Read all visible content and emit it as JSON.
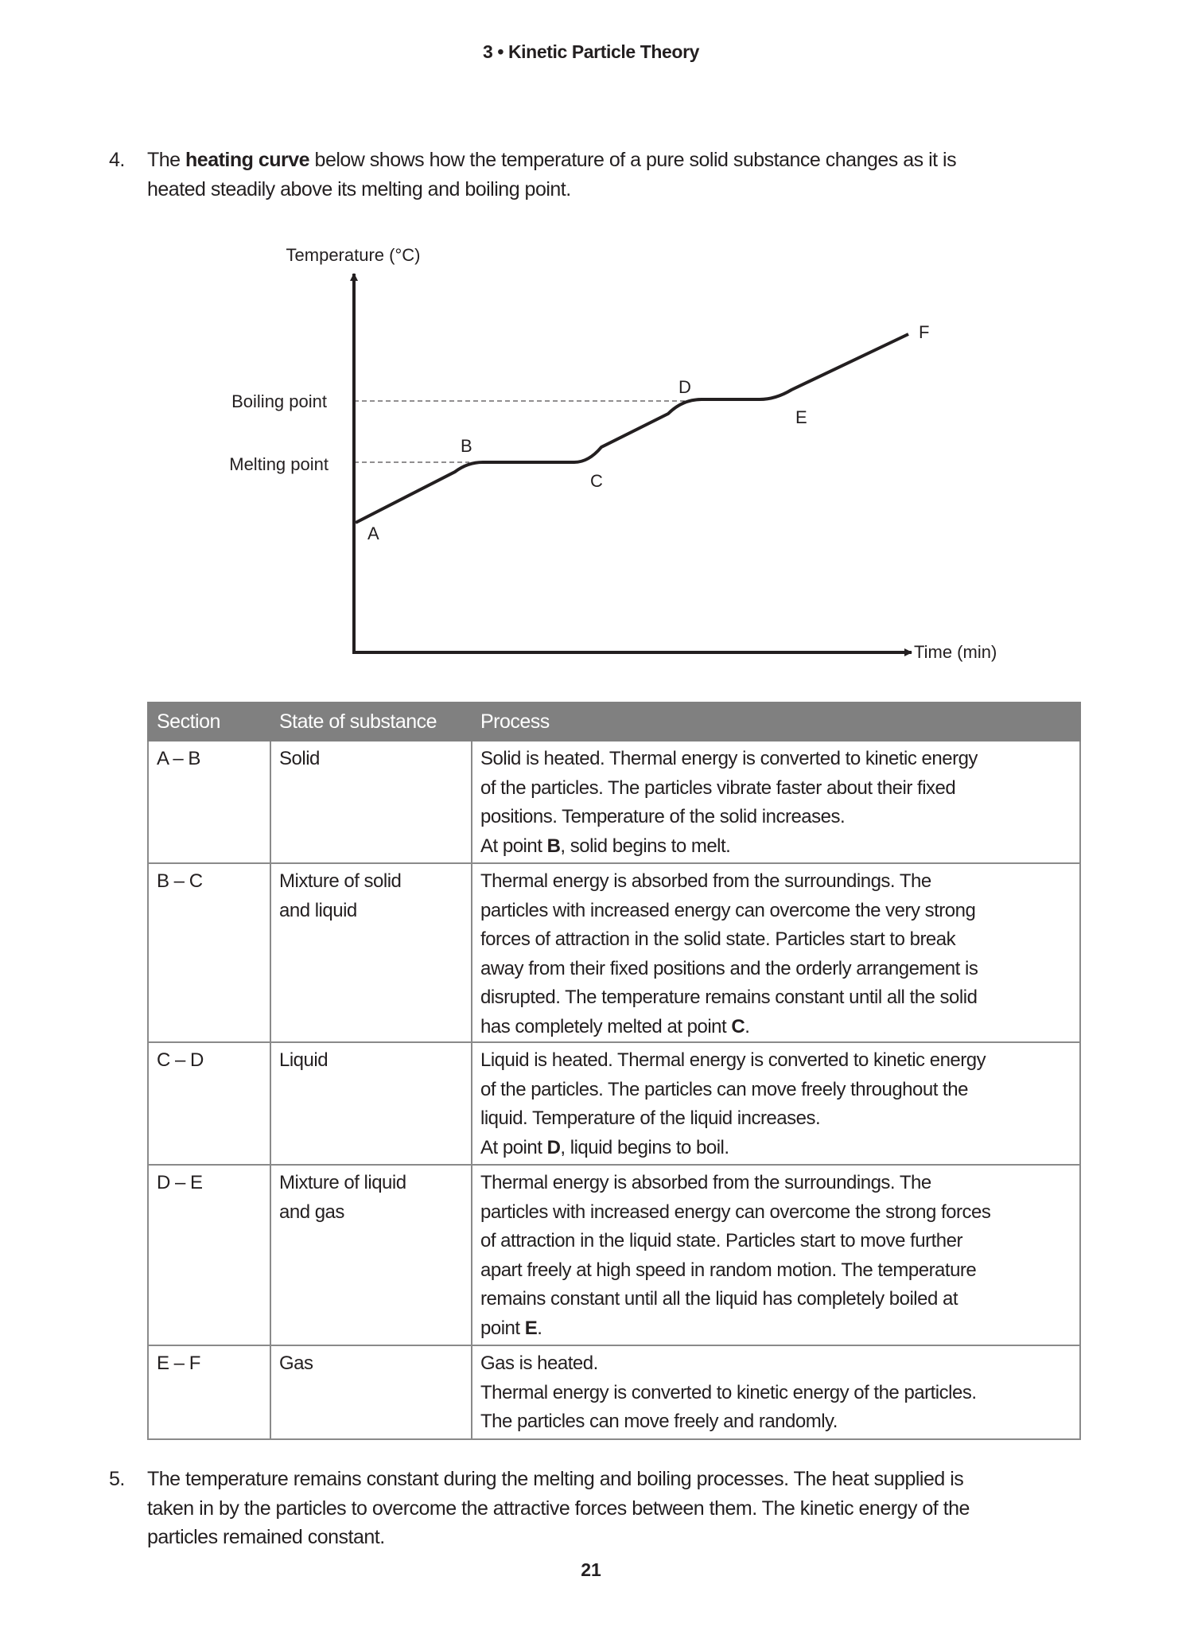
{
  "header": {
    "title": "3 • Kinetic Particle Theory"
  },
  "question4": {
    "number": "4.",
    "lines": [
      [
        {
          "t": "The "
        },
        {
          "t": "heating curve",
          "b": true
        },
        {
          "t": " below shows how the temperature of a pure solid substance changes as it is"
        }
      ],
      [
        {
          "t": "heated steadily above its melting and boiling point."
        }
      ]
    ]
  },
  "chart_data": {
    "type": "line",
    "title": "",
    "ylabel": "Temperature (°C)",
    "xlabel": "Time (min)",
    "y_reference_lines": [
      "Boiling point",
      "Melting point"
    ],
    "points": [
      "A",
      "B",
      "C",
      "D",
      "E",
      "F"
    ],
    "segments": [
      {
        "from": "A",
        "to": "B",
        "shape": "rising"
      },
      {
        "from": "B",
        "to": "C",
        "shape": "flat at Melting point"
      },
      {
        "from": "C",
        "to": "D",
        "shape": "rising"
      },
      {
        "from": "D",
        "to": "E",
        "shape": "flat at Boiling point"
      },
      {
        "from": "E",
        "to": "F",
        "shape": "rising"
      }
    ],
    "grid": false,
    "line_color": "#231f20"
  },
  "table": {
    "headers": [
      "Section",
      "State of substance",
      "Process"
    ],
    "header_bg": "#808080",
    "rows": [
      {
        "section": "A – B",
        "state": [
          "Solid"
        ],
        "process": [
          [
            {
              "t": "Solid is heated. Thermal energy is converted to kinetic energy"
            }
          ],
          [
            {
              "t": "of the particles. The particles vibrate faster about their fixed"
            }
          ],
          [
            {
              "t": "positions. Temperature of the solid increases."
            }
          ],
          [
            {
              "t": "At point "
            },
            {
              "t": "B",
              "b": true
            },
            {
              "t": ", solid begins to melt."
            }
          ]
        ]
      },
      {
        "section": "B – C",
        "state": [
          "Mixture of solid",
          "and liquid"
        ],
        "process": [
          [
            {
              "t": "Thermal energy is absorbed from the surroundings. The"
            }
          ],
          [
            {
              "t": "particles with increased energy can overcome the very strong"
            }
          ],
          [
            {
              "t": "forces of attraction in the solid state. Particles start to break"
            }
          ],
          [
            {
              "t": "away from their fixed positions and the orderly arrangement is"
            }
          ],
          [
            {
              "t": "disrupted. The temperature remains constant until all the solid"
            }
          ],
          [
            {
              "t": "has completely melted at point "
            },
            {
              "t": "C",
              "b": true
            },
            {
              "t": "."
            }
          ]
        ]
      },
      {
        "section": "C – D",
        "state": [
          "Liquid"
        ],
        "process": [
          [
            {
              "t": "Liquid is heated. Thermal energy is converted to kinetic energy"
            }
          ],
          [
            {
              "t": "of the particles. The particles can move freely throughout the"
            }
          ],
          [
            {
              "t": "liquid. Temperature of the liquid increases."
            }
          ],
          [
            {
              "t": "At point "
            },
            {
              "t": "D",
              "b": true
            },
            {
              "t": ", liquid begins to boil."
            }
          ]
        ]
      },
      {
        "section": "D – E",
        "state": [
          "Mixture of liquid",
          "and gas"
        ],
        "process": [
          [
            {
              "t": "Thermal energy is absorbed from the surroundings. The"
            }
          ],
          [
            {
              "t": "particles with increased energy can overcome the strong forces"
            }
          ],
          [
            {
              "t": "of attraction in the liquid state. Particles start to move further"
            }
          ],
          [
            {
              "t": "apart freely at high speed in random motion. The temperature"
            }
          ],
          [
            {
              "t": "remains constant until all the liquid has completely boiled at"
            }
          ],
          [
            {
              "t": "point "
            },
            {
              "t": "E",
              "b": true
            },
            {
              "t": "."
            }
          ]
        ]
      },
      {
        "section": "E – F",
        "state": [
          "Gas"
        ],
        "process": [
          [
            {
              "t": "Gas is heated."
            }
          ],
          [
            {
              "t": "Thermal energy is converted to kinetic energy of the particles."
            }
          ],
          [
            {
              "t": "The particles can move freely and randomly."
            }
          ]
        ]
      }
    ]
  },
  "question5": {
    "number": "5.",
    "lines": [
      [
        {
          "t": "The temperature remains constant during the melting and boiling processes. The heat supplied is"
        }
      ],
      [
        {
          "t": "taken in by the particles to overcome the attractive forces between them. The kinetic energy of the"
        }
      ],
      [
        {
          "t": "particles remained constant."
        }
      ]
    ]
  },
  "page_number": "21"
}
